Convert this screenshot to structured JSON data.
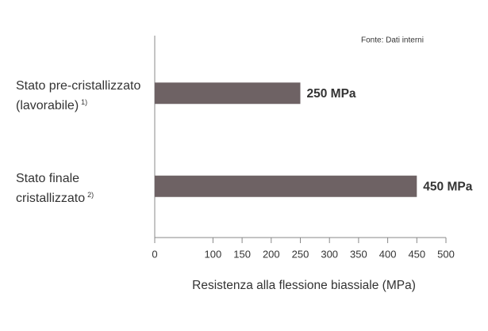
{
  "chart_data": {
    "type": "bar",
    "orientation": "horizontal",
    "source": "Fonte: Dati interni",
    "categories": [
      "Stato pre-cristallizzato (lavorabile)",
      "Stato finale cristallizzato"
    ],
    "category_notes": [
      "1)",
      "2)"
    ],
    "values": [
      250,
      450
    ],
    "value_labels": [
      "250 MPa",
      "450 MPa"
    ],
    "color": "#6e6264",
    "xlabel": "Resistenza alla flessione biassiale (MPa)",
    "xlim": [
      0,
      500
    ],
    "xticks": [
      0,
      100,
      150,
      200,
      250,
      300,
      350,
      400,
      450,
      500
    ]
  }
}
